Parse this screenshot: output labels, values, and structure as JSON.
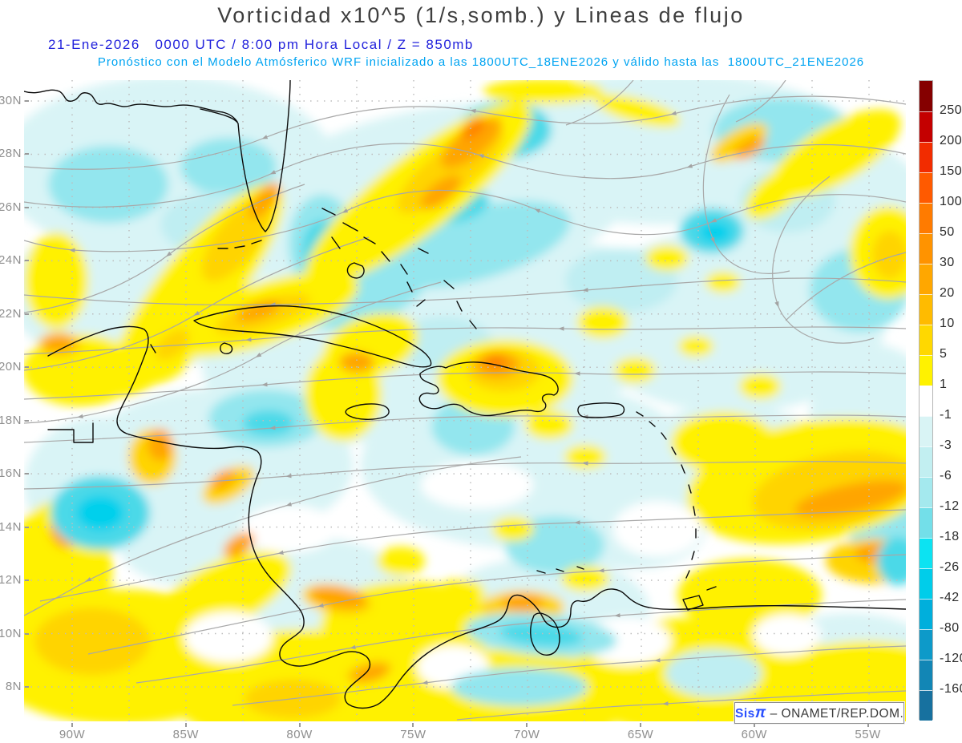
{
  "header": {
    "title": "Vorticidad x10^5 (1/s,somb.) y Lineas de flujo",
    "subtitle1": "21-Ene-2026   0000 UTC / 8:00 pm Hora Local / Z = 850mb",
    "subtitle2": "Pronóstico con el Modelo Atmósferico WRF inicializado a las 1800UTC_18ENE2026 y válido hasta las  1800UTC_21ENE2026",
    "title_color": "#3e3e3e",
    "subtitle1_color": "#2323dc",
    "subtitle2_color": "#00a4f2"
  },
  "map": {
    "lat_labels": [
      "30N",
      "28N",
      "26N",
      "24N",
      "22N",
      "20N",
      "18N",
      "16N",
      "14N",
      "12N",
      "10N",
      "8N"
    ],
    "lon_labels": [
      "90W",
      "85W",
      "80W",
      "75W",
      "70W",
      "65W",
      "60W",
      "55W"
    ]
  },
  "colorbar": {
    "labels": [
      "250",
      "200",
      "150",
      "100",
      "50",
      "30",
      "20",
      "10",
      "5",
      "1",
      "-1",
      "-3",
      "-6",
      "-12",
      "-18",
      "-26",
      "-42",
      "-80",
      "-120",
      "-160"
    ],
    "colors": [
      "#850000",
      "#c40000",
      "#f22c00",
      "#ff5a00",
      "#ff7b00",
      "#ff9300",
      "#ffa700",
      "#ffbb00",
      "#ffd800",
      "#fff200",
      "#ffffff",
      "#d9f4f5",
      "#c2eff1",
      "#a4e9ee",
      "#73dfe9",
      "#0ce3f2",
      "#00cdea",
      "#00afdc",
      "#0d9ac9",
      "#1286b5",
      "#17719f"
    ]
  },
  "credit": {
    "brand": "Sis",
    "brand_symbol": "π",
    "text": " – ONAMET/REP.DOM."
  }
}
